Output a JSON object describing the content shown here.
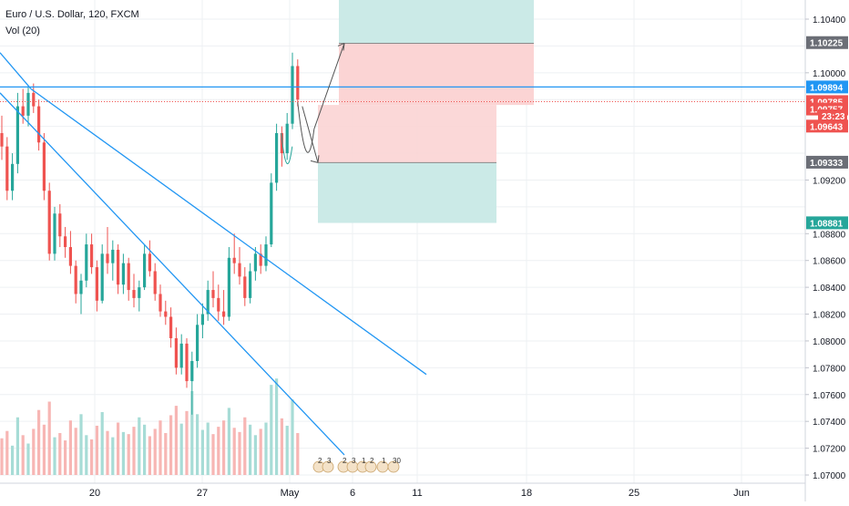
{
  "legend": {
    "symbol": "Euro / U.S. Dollar, 120, FXCM",
    "volume": "Vol (20)"
  },
  "colors": {
    "up": "#26a69a",
    "down": "#ef5350",
    "vol_up": "#a7dcd6",
    "vol_down": "#f7b6b4",
    "trendline": "#2196f3",
    "profit_zone": "#cbeae7",
    "loss_zone": "#fbd4d4",
    "grid": "#eef0f3",
    "axis_text": "#131722"
  },
  "chart_data": {
    "type": "candlestick",
    "title": "",
    "y_axis": {
      "range": [
        1.07,
        1.1055
      ],
      "ticks": [
        "1.10400",
        "1.10000",
        "1.09200",
        "1.08800",
        "1.08600",
        "1.08400",
        "1.08200",
        "1.08000",
        "1.07800",
        "1.07600",
        "1.07400",
        "1.07200",
        "1.07000"
      ]
    },
    "x_axis": {
      "labels": [
        "20",
        "27",
        "May",
        "6",
        "11",
        "18",
        "25",
        "Jun"
      ]
    },
    "price_labels": [
      {
        "value": "1.10225",
        "kind": "target"
      },
      {
        "value": "1.09894",
        "kind": "line"
      },
      {
        "value": "1.09785",
        "kind": "last"
      },
      {
        "value": "1.09757",
        "kind": "sell"
      },
      {
        "value": "23:23",
        "kind": "countdown"
      },
      {
        "value": "1.09643",
        "kind": "sell"
      },
      {
        "value": "1.09333",
        "kind": "target"
      },
      {
        "value": "1.08881",
        "kind": "long-target"
      }
    ],
    "horizontal_line": 1.09894,
    "last_price": 1.09785,
    "positions": [
      {
        "type": "short",
        "entry": 1.0976,
        "stop": 1.1022,
        "target": 1.0933,
        "top": 1.1055
      },
      {
        "type": "long-box",
        "entry": 1.0976,
        "stop": 1.0933,
        "target": 1.0888
      }
    ],
    "trendlines": [
      {
        "from": {
          "date": "Apr 13",
          "price": 1.1005
        },
        "to": {
          "date": "Apr 16",
          "price": 1.0988
        }
      },
      {
        "from": {
          "date": "Apr 16",
          "price": 1.0988
        },
        "to": {
          "date": "May 5",
          "price": 1.0715
        }
      },
      {
        "from": {
          "date": "Apr 16",
          "price": 1.0988
        },
        "to": {
          "date": "May 10",
          "price": 1.0775
        }
      }
    ],
    "projection": [
      {
        "price": 1.0978
      },
      {
        "price": 1.0958
      },
      {
        "price": 1.0935
      }
    ],
    "event_markers": [
      "2",
      "3",
      "2",
      "3",
      "1",
      "2",
      "1",
      "30"
    ],
    "ohlc": [
      [
        1.0955,
        1.0968,
        1.0935,
        1.0945
      ],
      [
        1.0945,
        1.0952,
        1.0905,
        1.0912
      ],
      [
        1.0912,
        1.094,
        1.0905,
        1.0932
      ],
      [
        1.0932,
        1.0985,
        1.0925,
        1.0975
      ],
      [
        1.0975,
        1.0988,
        1.0962,
        1.0968
      ],
      [
        1.0968,
        1.099,
        1.096,
        1.0985
      ],
      [
        1.0985,
        1.0992,
        1.097,
        1.0975
      ],
      [
        1.0975,
        1.098,
        1.0942,
        1.0948
      ],
      [
        1.0948,
        1.0955,
        1.0905,
        1.0912
      ],
      [
        1.0912,
        1.0918,
        1.086,
        1.0865
      ],
      [
        1.0865,
        1.09,
        1.086,
        1.0895
      ],
      [
        1.0895,
        1.0902,
        1.087,
        1.0878
      ],
      [
        1.0878,
        1.0885,
        1.0862,
        1.087
      ],
      [
        1.087,
        1.0882,
        1.085,
        1.0856
      ],
      [
        1.0856,
        1.086,
        1.0828,
        1.0835
      ],
      [
        1.0835,
        1.085,
        1.082,
        1.0845
      ],
      [
        1.0845,
        1.088,
        1.084,
        1.0872
      ],
      [
        1.0872,
        1.088,
        1.085,
        1.0855
      ],
      [
        1.0855,
        1.086,
        1.0822,
        1.083
      ],
      [
        1.083,
        1.0872,
        1.0828,
        1.0865
      ],
      [
        1.0865,
        1.0885,
        1.085,
        1.0858
      ],
      [
        1.0858,
        1.0875,
        1.0845,
        1.0868
      ],
      [
        1.0868,
        1.0872,
        1.0835,
        1.0842
      ],
      [
        1.0842,
        1.0865,
        1.0835,
        1.0858
      ],
      [
        1.0858,
        1.0862,
        1.083,
        1.0838
      ],
      [
        1.0838,
        1.085,
        1.0825,
        1.0832
      ],
      [
        1.0832,
        1.0845,
        1.0822,
        1.084
      ],
      [
        1.084,
        1.0872,
        1.0838,
        1.0865
      ],
      [
        1.0865,
        1.0875,
        1.0848,
        1.0852
      ],
      [
        1.0852,
        1.0858,
        1.083,
        1.0835
      ],
      [
        1.0835,
        1.0842,
        1.0818,
        1.0822
      ],
      [
        1.0822,
        1.083,
        1.0812,
        1.0818
      ],
      [
        1.0818,
        1.0825,
        1.0795,
        1.0802
      ],
      [
        1.0802,
        1.081,
        1.0775,
        1.078
      ],
      [
        1.078,
        1.0805,
        1.0775,
        1.0798
      ],
      [
        1.0798,
        1.0802,
        1.0765,
        1.077
      ],
      [
        1.077,
        1.0792,
        1.0745,
        1.0785
      ],
      [
        1.0785,
        1.082,
        1.078,
        1.0812
      ],
      [
        1.0812,
        1.0828,
        1.0802,
        1.082
      ],
      [
        1.082,
        1.0845,
        1.0815,
        1.0838
      ],
      [
        1.0838,
        1.0852,
        1.0825,
        1.0832
      ],
      [
        1.0832,
        1.0842,
        1.0815,
        1.0822
      ],
      [
        1.0822,
        1.0838,
        1.0812,
        1.0818
      ],
      [
        1.0818,
        1.087,
        1.0815,
        1.0862
      ],
      [
        1.0862,
        1.088,
        1.085,
        1.0858
      ],
      [
        1.0858,
        1.087,
        1.0842,
        1.0848
      ],
      [
        1.0848,
        1.0855,
        1.0826,
        1.0832
      ],
      [
        1.0832,
        1.0858,
        1.0828,
        1.0852
      ],
      [
        1.0852,
        1.087,
        1.0845,
        1.0865
      ],
      [
        1.0865,
        1.0872,
        1.085,
        1.0856
      ],
      [
        1.0856,
        1.0878,
        1.0852,
        1.0872
      ],
      [
        1.0872,
        1.0925,
        1.087,
        1.0918
      ],
      [
        1.0918,
        1.0962,
        1.0912,
        1.0955
      ],
      [
        1.0955,
        1.096,
        1.093,
        1.094
      ],
      [
        1.094,
        1.097,
        1.0935,
        1.0962
      ],
      [
        1.0962,
        1.1015,
        1.0958,
        1.1005
      ],
      [
        1.1005,
        1.101,
        1.0975,
        1.098
      ]
    ],
    "volumes": [
      0.35,
      0.42,
      0.28,
      0.55,
      0.38,
      0.3,
      0.44,
      0.62,
      0.48,
      0.7,
      0.36,
      0.4,
      0.33,
      0.52,
      0.45,
      0.58,
      0.38,
      0.34,
      0.47,
      0.6,
      0.42,
      0.36,
      0.5,
      0.41,
      0.39,
      0.46,
      0.55,
      0.48,
      0.37,
      0.44,
      0.52,
      0.4,
      0.57,
      0.66,
      0.49,
      0.61,
      0.8,
      0.58,
      0.43,
      0.5,
      0.39,
      0.46,
      0.52,
      0.64,
      0.45,
      0.41,
      0.55,
      0.48,
      0.38,
      0.44,
      0.5,
      0.86,
      0.92,
      0.54,
      0.47,
      0.72,
      0.4
    ]
  }
}
